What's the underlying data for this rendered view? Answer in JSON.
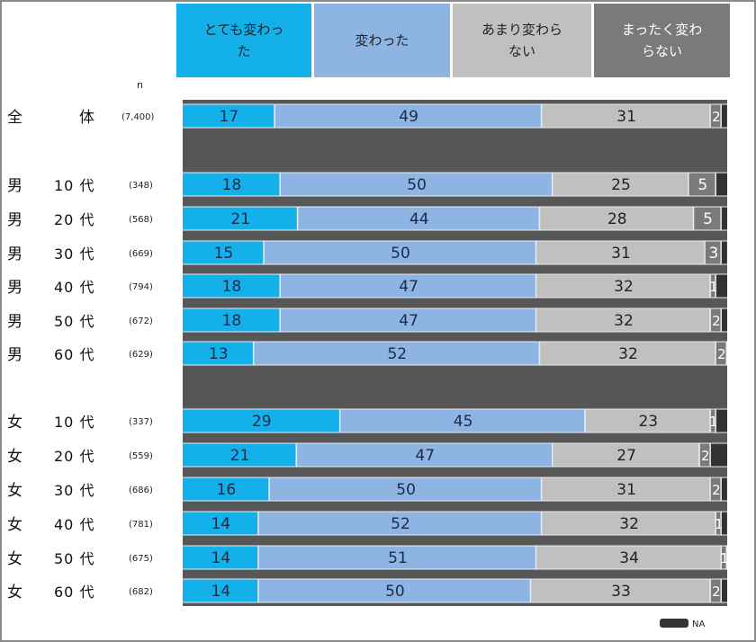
{
  "chart_data": {
    "type": "bar",
    "orientation": "horizontal",
    "stacked": true,
    "percent": true,
    "n_header": "n",
    "legend": [
      {
        "name": "とても変わった",
        "label_lines": [
          "とても変わっ",
          "た"
        ],
        "color": "#13b0ea",
        "text_color": "#1a2a4a"
      },
      {
        "name": "変わった",
        "label_lines": [
          "変わった"
        ],
        "color": "#8eb4e3",
        "text_color": "#1a2a4a"
      },
      {
        "name": "あまり変わらない",
        "label_lines": [
          "あまり変わら",
          "ない"
        ],
        "color": "#c0c0c0",
        "text_color": "#222222"
      },
      {
        "name": "まったく変わらない",
        "label_lines": [
          "まったく変わ",
          "らない"
        ],
        "color": "#7a7a7a",
        "text_color": "#ffffff"
      },
      {
        "name": "NA",
        "label_lines": [
          "NA"
        ],
        "color": "#333333",
        "text_color": "#ffffff"
      }
    ],
    "rows": [
      {
        "group": "全",
        "age": "体",
        "n": "(7,400)",
        "values": [
          17,
          49,
          31,
          2,
          1
        ]
      },
      {
        "separator": true
      },
      {
        "group": "男",
        "age": "10 代",
        "n": "(348)",
        "values": [
          18,
          50,
          25,
          5,
          2
        ]
      },
      {
        "group": "男",
        "age": "20 代",
        "n": "(568)",
        "values": [
          21,
          44,
          28,
          5,
          1
        ]
      },
      {
        "group": "男",
        "age": "30 代",
        "n": "(669)",
        "values": [
          15,
          50,
          31,
          3,
          1
        ]
      },
      {
        "group": "男",
        "age": "40 代",
        "n": "(794)",
        "values": [
          18,
          47,
          32,
          1,
          2
        ]
      },
      {
        "group": "男",
        "age": "50 代",
        "n": "(672)",
        "values": [
          18,
          47,
          32,
          2,
          1
        ]
      },
      {
        "group": "男",
        "age": "60 代",
        "n": "(629)",
        "values": [
          13,
          52,
          32,
          2,
          0
        ]
      },
      {
        "separator": true
      },
      {
        "group": "女",
        "age": "10 代",
        "n": "(337)",
        "values": [
          29,
          45,
          23,
          1,
          2
        ]
      },
      {
        "group": "女",
        "age": "20 代",
        "n": "(559)",
        "values": [
          21,
          47,
          27,
          2,
          3
        ]
      },
      {
        "group": "女",
        "age": "30 代",
        "n": "(686)",
        "values": [
          16,
          50,
          31,
          2,
          1
        ]
      },
      {
        "group": "女",
        "age": "40 代",
        "n": "(781)",
        "values": [
          14,
          52,
          32,
          1,
          1
        ]
      },
      {
        "group": "女",
        "age": "50 代",
        "n": "(675)",
        "values": [
          14,
          51,
          34,
          1,
          0
        ]
      },
      {
        "group": "女",
        "age": "60 代",
        "n": "(682)",
        "values": [
          14,
          50,
          33,
          2,
          1
        ]
      }
    ],
    "segment_labels_shown": [
      [
        "17",
        "49",
        "31",
        "2",
        ""
      ],
      [],
      [
        "18",
        "50",
        "25",
        "5",
        ""
      ],
      [
        "21",
        "44",
        "28",
        "5",
        ""
      ],
      [
        "15",
        "50",
        "31",
        "3",
        ""
      ],
      [
        "18",
        "47",
        "32",
        "1",
        ""
      ],
      [
        "18",
        "47",
        "32",
        "2",
        ""
      ],
      [
        "13",
        "52",
        "32",
        "2",
        ""
      ],
      [],
      [
        "29",
        "45",
        "23",
        "1",
        ""
      ],
      [
        "21",
        "47",
        "27",
        "2",
        ""
      ],
      [
        "16",
        "50",
        "31",
        "2",
        ""
      ],
      [
        "14",
        "52",
        "32",
        "1",
        ""
      ],
      [
        "14",
        "51",
        "34",
        "1",
        ""
      ],
      [
        "14",
        "50",
        "33",
        "2",
        ""
      ]
    ],
    "xlim": [
      0,
      100
    ]
  }
}
